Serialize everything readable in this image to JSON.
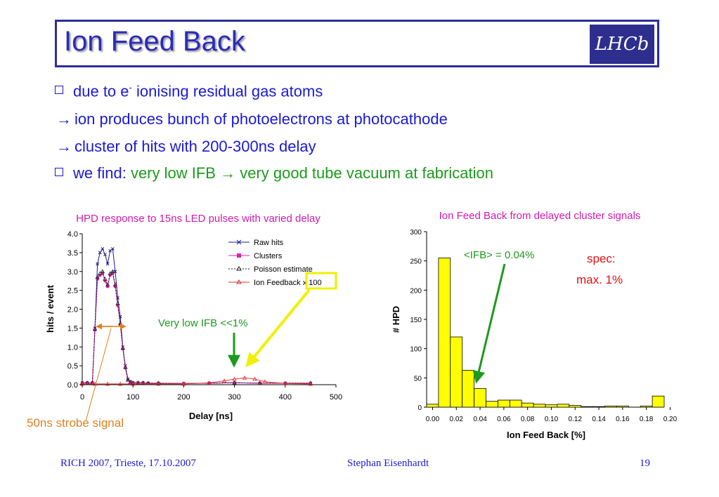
{
  "slide": {
    "title": "Ion Feed Back",
    "logo_text": "LHCb",
    "bullets": [
      {
        "marker": "square",
        "text_pre": "due to e",
        "sup": "-",
        "text_post": " ionising residual gas atoms"
      },
      {
        "marker": "arrow",
        "symbol": "→",
        "text": "ion produces bunch of photoelectrons at photocathode"
      },
      {
        "marker": "arrow",
        "symbol": "→",
        "text": "cluster of hits with 200-300ns delay"
      },
      {
        "marker": "square",
        "text_a": "we find: ",
        "text_b": "very low IFB ",
        "symbol": "→",
        "text_c": " very good tube vacuum at fabrication"
      }
    ],
    "footer": {
      "left": "RICH 2007, Trieste, 17.10.2007",
      "center": "Stephan Eisenhardt",
      "right": "19"
    }
  },
  "chart_data": [
    {
      "type": "line",
      "title": "HPD response to 15ns LED pulses with varied delay",
      "xlabel": "Delay [ns]",
      "ylabel": "hits / event",
      "xlim": [
        0,
        500
      ],
      "ylim": [
        0,
        4.0
      ],
      "xticks": [
        0,
        100,
        200,
        300,
        400,
        500
      ],
      "yticks": [
        0.0,
        0.5,
        1.0,
        1.5,
        2.0,
        2.5,
        3.0,
        3.5,
        4.0
      ],
      "legend_position": "top-right",
      "series": [
        {
          "name": "Raw hits",
          "color": "#1a1a8c",
          "marker": "x",
          "x": [
            0,
            10,
            20,
            25,
            30,
            35,
            40,
            45,
            50,
            55,
            60,
            65,
            70,
            75,
            80,
            85,
            90,
            95,
            100,
            110,
            120,
            130,
            150,
            200,
            250,
            300,
            350,
            400,
            450
          ],
          "y": [
            0.05,
            0.05,
            0.05,
            1.5,
            3.2,
            3.5,
            3.6,
            3.45,
            3.2,
            3.55,
            3.6,
            3.0,
            2.3,
            1.8,
            1.0,
            0.5,
            0.15,
            0.08,
            0.05,
            0.05,
            0.05,
            0.04,
            0.04,
            0.03,
            0.04,
            0.05,
            0.04,
            0.04,
            0.04
          ]
        },
        {
          "name": "Clusters",
          "color": "#e020b0",
          "marker": "square",
          "x": [
            0,
            10,
            20,
            25,
            30,
            35,
            40,
            45,
            50,
            55,
            60,
            65,
            70,
            75,
            80,
            85,
            90,
            95,
            100,
            110,
            120,
            130,
            150,
            200,
            250,
            300,
            350,
            400,
            450
          ],
          "y": [
            0.05,
            0.05,
            0.05,
            1.45,
            2.8,
            2.9,
            2.95,
            2.75,
            2.6,
            2.9,
            2.95,
            2.6,
            2.1,
            1.6,
            0.95,
            0.45,
            0.12,
            0.07,
            0.05,
            0.05,
            0.05,
            0.04,
            0.04,
            0.03,
            0.04,
            0.05,
            0.04,
            0.04,
            0.04
          ]
        },
        {
          "name": "Poisson estimate",
          "color": "#222222",
          "marker": "triangle",
          "dashed": true,
          "x": [
            0,
            10,
            20,
            25,
            30,
            35,
            40,
            45,
            50,
            55,
            60,
            65,
            70,
            75,
            80,
            85,
            90,
            95,
            100,
            110,
            120,
            130,
            150,
            200,
            250,
            300,
            350,
            400,
            450
          ],
          "y": [
            0.05,
            0.05,
            0.05,
            1.48,
            2.85,
            2.95,
            3.0,
            2.8,
            2.65,
            2.95,
            3.0,
            2.65,
            2.15,
            1.62,
            0.97,
            0.46,
            0.13,
            0.07,
            0.05,
            0.05,
            0.05,
            0.04,
            0.04,
            0.03,
            0.04,
            0.05,
            0.04,
            0.04,
            0.04
          ]
        },
        {
          "name": "Ion Feedback x 100",
          "color": "#e03030",
          "marker": "triangle",
          "x": [
            0,
            25,
            50,
            75,
            100,
            150,
            200,
            250,
            280,
            300,
            320,
            340,
            360,
            400,
            450
          ],
          "y": [
            0.02,
            0.02,
            0.02,
            0.02,
            0.02,
            0.02,
            0.02,
            0.05,
            0.1,
            0.15,
            0.18,
            0.15,
            0.08,
            0.03,
            0.02
          ]
        }
      ],
      "annotations": [
        {
          "text": "Very low IFB <<1%",
          "color": "#1c9a1c"
        },
        {
          "text": "50ns strobe signal",
          "color": "#e08020"
        }
      ]
    },
    {
      "type": "bar",
      "title": "Ion Feed Back from delayed cluster signals",
      "xlabel": "Ion Feed Back [%]",
      "ylabel": "# HPD",
      "ylim": [
        0,
        300
      ],
      "yticks": [
        0,
        50,
        100,
        150,
        200,
        250,
        300
      ],
      "xticks": [
        "0.00",
        "0.02",
        "0.04",
        "0.06",
        "0.08",
        "0.10",
        "0.12",
        "0.14",
        "0.16",
        "0.18",
        "0.20"
      ],
      "bin_width": 0.01,
      "bin_start": 0.0,
      "values": [
        5,
        255,
        120,
        63,
        32,
        10,
        12,
        12,
        7,
        5,
        4,
        5,
        3,
        1,
        1,
        2,
        2,
        0,
        2,
        19
      ],
      "bar_color": "#ffff00",
      "annotations": [
        {
          "text": "<IFB> = 0.04%",
          "color": "#1c9a1c"
        },
        {
          "text": "spec:",
          "color": "#e01010"
        },
        {
          "text": "max. 1%",
          "color": "#e01010"
        }
      ]
    }
  ]
}
